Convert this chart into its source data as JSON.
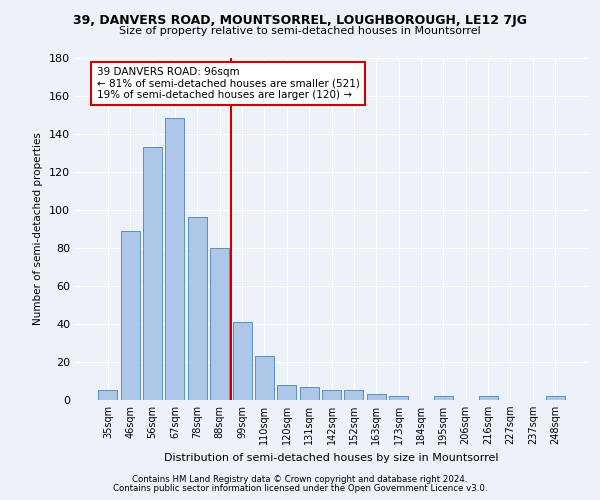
{
  "title": "39, DANVERS ROAD, MOUNTSORREL, LOUGHBOROUGH, LE12 7JG",
  "subtitle": "Size of property relative to semi-detached houses in Mountsorrel",
  "xlabel": "Distribution of semi-detached houses by size in Mountsorrel",
  "ylabel": "Number of semi-detached properties",
  "categories": [
    "35sqm",
    "46sqm",
    "56sqm",
    "67sqm",
    "78sqm",
    "88sqm",
    "99sqm",
    "110sqm",
    "120sqm",
    "131sqm",
    "142sqm",
    "152sqm",
    "163sqm",
    "173sqm",
    "184sqm",
    "195sqm",
    "206sqm",
    "216sqm",
    "227sqm",
    "237sqm",
    "248sqm"
  ],
  "values": [
    5,
    89,
    133,
    148,
    96,
    80,
    41,
    23,
    8,
    7,
    5,
    5,
    3,
    2,
    0,
    2,
    0,
    2,
    0,
    0,
    2
  ],
  "bar_color": "#aec6e8",
  "bar_edge_color": "#5a8fc0",
  "vline_x_index": 5.5,
  "annotation_title": "39 DANVERS ROAD: 96sqm",
  "annotation_line1": "← 81% of semi-detached houses are smaller (521)",
  "annotation_line2": "19% of semi-detached houses are larger (120) →",
  "annotation_box_color": "#ffffff",
  "annotation_box_edge": "#cc0000",
  "vline_color": "#cc0000",
  "ylim": [
    0,
    180
  ],
  "yticks": [
    0,
    20,
    40,
    60,
    80,
    100,
    120,
    140,
    160,
    180
  ],
  "footnote1": "Contains HM Land Registry data © Crown copyright and database right 2024.",
  "footnote2": "Contains public sector information licensed under the Open Government Licence v3.0.",
  "bg_color": "#edf2f9",
  "plot_bg_color": "#edf2f9",
  "grid_color": "#ffffff"
}
